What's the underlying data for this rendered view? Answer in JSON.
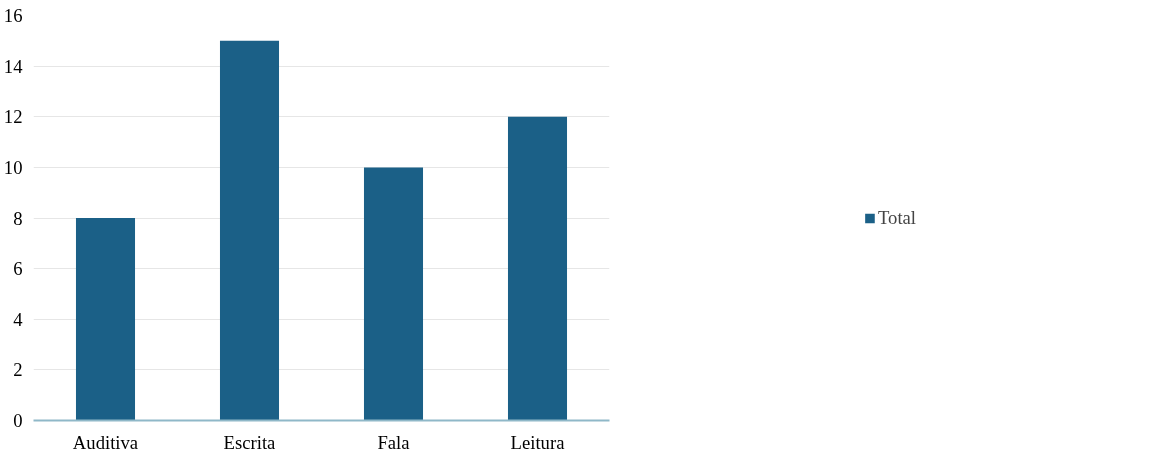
{
  "chart_data": {
    "type": "bar",
    "categories": [
      "Auditiva",
      "Escrita",
      "Fala",
      "Leitura"
    ],
    "series": [
      {
        "name": "Total",
        "color": "#1b6087",
        "values": [
          8,
          15,
          10,
          12
        ]
      }
    ],
    "ylim": [
      0,
      16
    ],
    "yticks": [
      0,
      2,
      4,
      6,
      8,
      10,
      12,
      14,
      16
    ],
    "grid": "y",
    "legend": "right"
  }
}
